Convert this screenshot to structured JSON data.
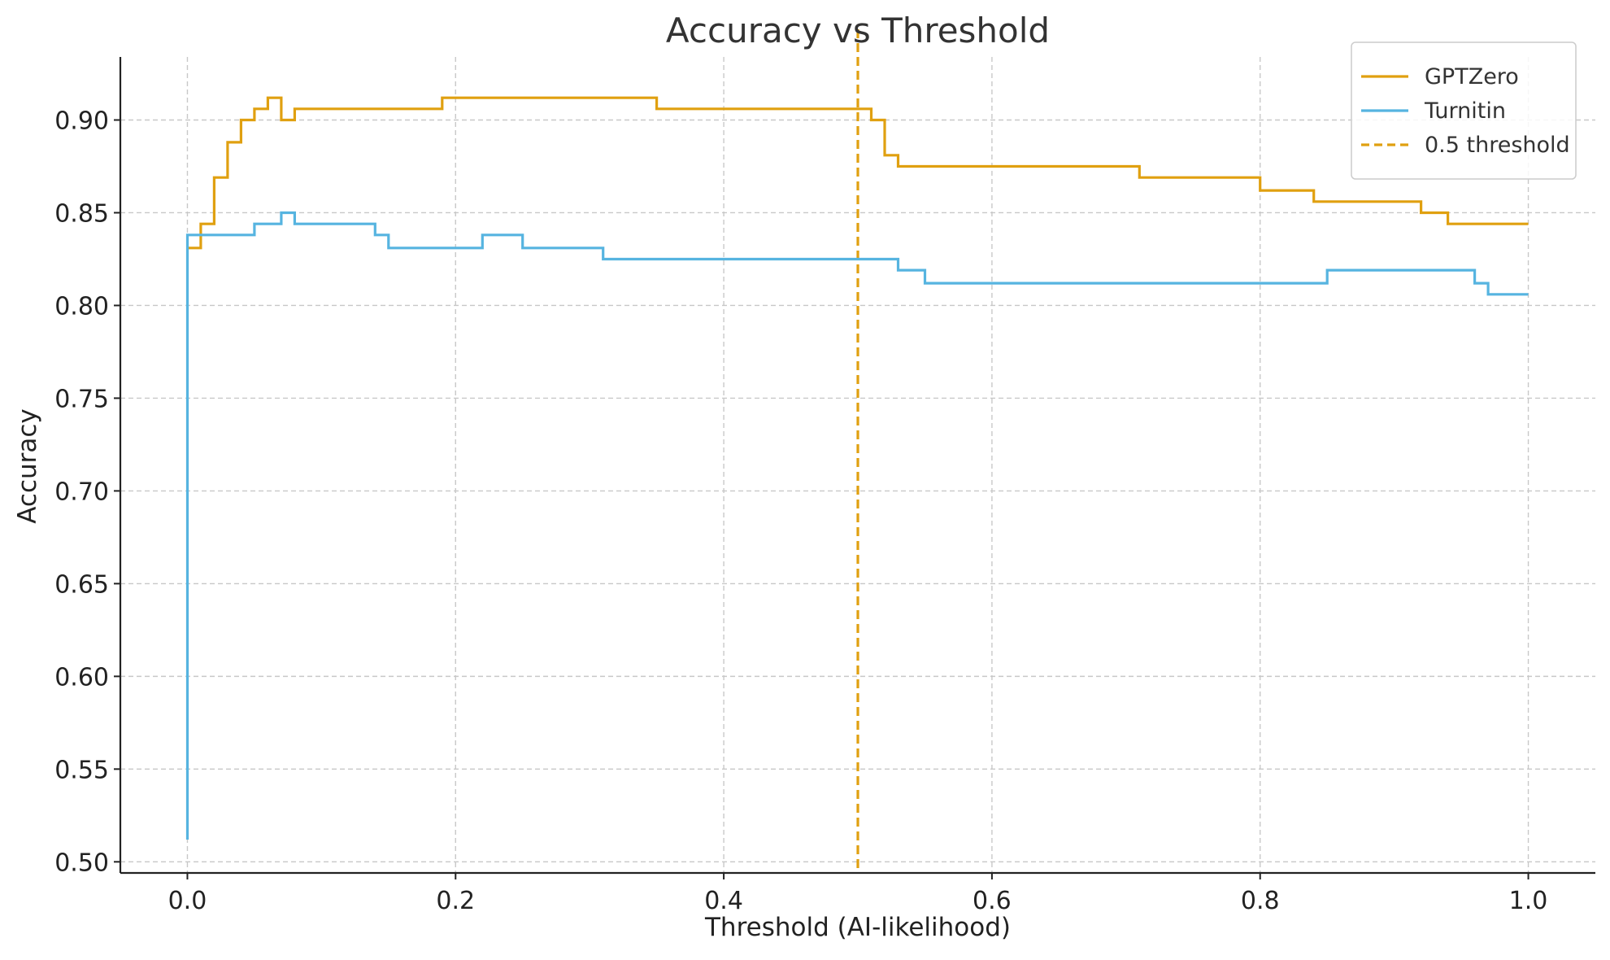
{
  "chart_data": {
    "type": "line",
    "title": "Accuracy vs Threshold",
    "xlabel": "Threshold (AI-likelihood)",
    "ylabel": "Accuracy",
    "xlim": [
      -0.05,
      1.05
    ],
    "ylim": [
      0.494,
      0.934
    ],
    "xticks": [
      0.0,
      0.2,
      0.4,
      0.6,
      0.8,
      1.0
    ],
    "xtick_labels": [
      "0.0",
      "0.2",
      "0.4",
      "0.6",
      "0.8",
      "1.0"
    ],
    "yticks": [
      0.5,
      0.55,
      0.6,
      0.65,
      0.7,
      0.75,
      0.8,
      0.85,
      0.9
    ],
    "ytick_labels": [
      "0.50",
      "0.55",
      "0.60",
      "0.65",
      "0.70",
      "0.75",
      "0.80",
      "0.85",
      "0.90"
    ],
    "grid": true,
    "legend_position": "top-right",
    "series": [
      {
        "name": "GPTZero",
        "color": "#E0A010",
        "style": "step",
        "points": [
          [
            0.0,
            0.831
          ],
          [
            0.01,
            0.844
          ],
          [
            0.02,
            0.869
          ],
          [
            0.03,
            0.888
          ],
          [
            0.04,
            0.9
          ],
          [
            0.05,
            0.906
          ],
          [
            0.06,
            0.912
          ],
          [
            0.07,
            0.9
          ],
          [
            0.08,
            0.906
          ],
          [
            0.19,
            0.912
          ],
          [
            0.35,
            0.906
          ],
          [
            0.51,
            0.9
          ],
          [
            0.52,
            0.881
          ],
          [
            0.53,
            0.875
          ],
          [
            0.71,
            0.869
          ],
          [
            0.8,
            0.862
          ],
          [
            0.84,
            0.856
          ],
          [
            0.92,
            0.85
          ],
          [
            0.94,
            0.844
          ],
          [
            1.0,
            0.844
          ]
        ]
      },
      {
        "name": "Turnitin",
        "color": "#56B4E0",
        "style": "step",
        "points": [
          [
            0.0,
            0.512
          ],
          [
            0.0,
            0.838
          ],
          [
            0.05,
            0.844
          ],
          [
            0.07,
            0.85
          ],
          [
            0.08,
            0.844
          ],
          [
            0.14,
            0.838
          ],
          [
            0.15,
            0.831
          ],
          [
            0.22,
            0.838
          ],
          [
            0.25,
            0.831
          ],
          [
            0.31,
            0.825
          ],
          [
            0.53,
            0.819
          ],
          [
            0.55,
            0.812
          ],
          [
            0.85,
            0.819
          ],
          [
            0.96,
            0.812
          ],
          [
            0.97,
            0.806
          ],
          [
            1.0,
            0.806
          ]
        ]
      }
    ],
    "reference_lines": [
      {
        "name": "0.5 threshold",
        "x": 0.5,
        "color": "#E0A010",
        "style": "dashed"
      }
    ]
  }
}
